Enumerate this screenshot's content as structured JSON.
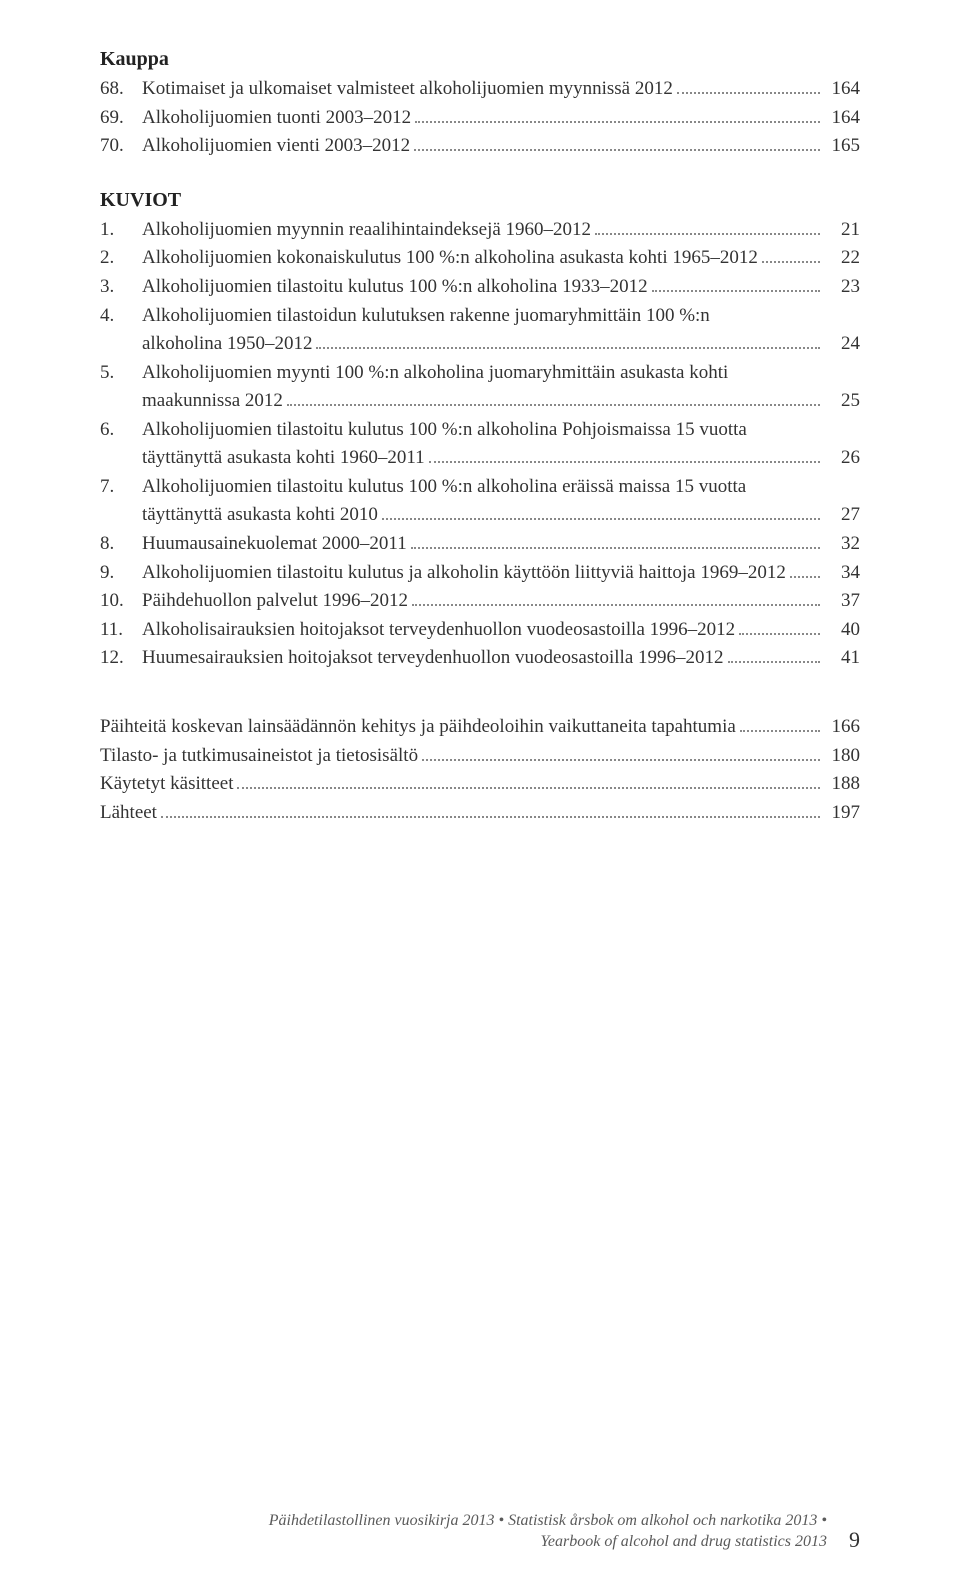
{
  "sections": {
    "kauppa": {
      "heading": "Kauppa",
      "items": [
        {
          "num": "68.",
          "label": "Kotimaiset ja ulkomaiset valmisteet alkoholijuomien myynnissä 2012",
          "page": "164"
        },
        {
          "num": "69.",
          "label": "Alkoholijuomien tuonti 2003–2012",
          "page": "164"
        },
        {
          "num": "70.",
          "label": "Alkoholijuomien vienti 2003–2012",
          "page": "165"
        }
      ]
    },
    "kuviot": {
      "heading": "KUVIOT",
      "items": [
        {
          "num": "1.",
          "label": "Alkoholijuomien myynnin reaalihintaindeksejä 1960–2012",
          "page": "21"
        },
        {
          "num": "2.",
          "label": "Alkoholijuomien kokonaiskulutus 100 %:n alkoholina asukasta kohti 1965–2012",
          "page": "22"
        },
        {
          "num": "3.",
          "label": "Alkoholijuomien tilastoitu kulutus 100 %:n alkoholina 1933–2012",
          "page": "23"
        },
        {
          "num": "4.",
          "label": "Alkoholijuomien tilastoidun kulutuksen rakenne juomaryhmittäin 100 %:n",
          "label2": "alkoholina 1950–2012",
          "page": "24"
        },
        {
          "num": "5.",
          "label": "Alkoholijuomien myynti 100 %:n alkoholina juomaryhmittäin asukasta kohti",
          "label2": "maakunnissa 2012",
          "page": "25"
        },
        {
          "num": "6.",
          "label": "Alkoholijuomien tilastoitu kulutus 100 %:n alkoholina Pohjoismaissa 15 vuotta",
          "label2": "täyttänyttä asukasta kohti 1960–2011",
          "page": "26"
        },
        {
          "num": "7.",
          "label": "Alkoholijuomien tilastoitu kulutus 100 %:n alkoholina eräissä maissa 15 vuotta",
          "label2": "täyttänyttä asukasta kohti 2010",
          "page": "27"
        },
        {
          "num": "8.",
          "label": "Huumausainekuolemat 2000–2011",
          "page": "32"
        },
        {
          "num": "9.",
          "label": "Alkoholijuomien tilastoitu kulutus ja alkoholin käyttöön liittyviä haittoja 1969–2012",
          "page": "34"
        },
        {
          "num": "10.",
          "label": "Päihdehuollon palvelut 1996–2012",
          "page": "37"
        },
        {
          "num": "11.",
          "label": "Alkoholisairauksien hoitojaksot terveydenhuollon vuodeosastoilla 1996–2012",
          "page": "40"
        },
        {
          "num": "12.",
          "label": "Huumesairauksien hoitojaksot terveydenhuollon vuodeosastoilla 1996–2012",
          "page": "41"
        }
      ]
    },
    "appendix": {
      "items": [
        {
          "label": "Päihteitä koskevan lainsäädännön kehitys ja päihdeoloihin vaikuttaneita tapahtumia",
          "page": "166"
        },
        {
          "label": "Tilasto- ja tutkimusaineistot ja tietosisältö",
          "page": "180"
        },
        {
          "label": "Käytetyt käsitteet",
          "page": "188"
        },
        {
          "label": "Lähteet",
          "page": "197"
        }
      ]
    }
  },
  "footer": {
    "line1": "Päihdetilastollinen vuosikirja 2013 • Statistisk årsbok om alkohol och narkotika 2013 •",
    "line2": "Yearbook of alcohol and drug statistics 2013",
    "page_number": "9"
  }
}
